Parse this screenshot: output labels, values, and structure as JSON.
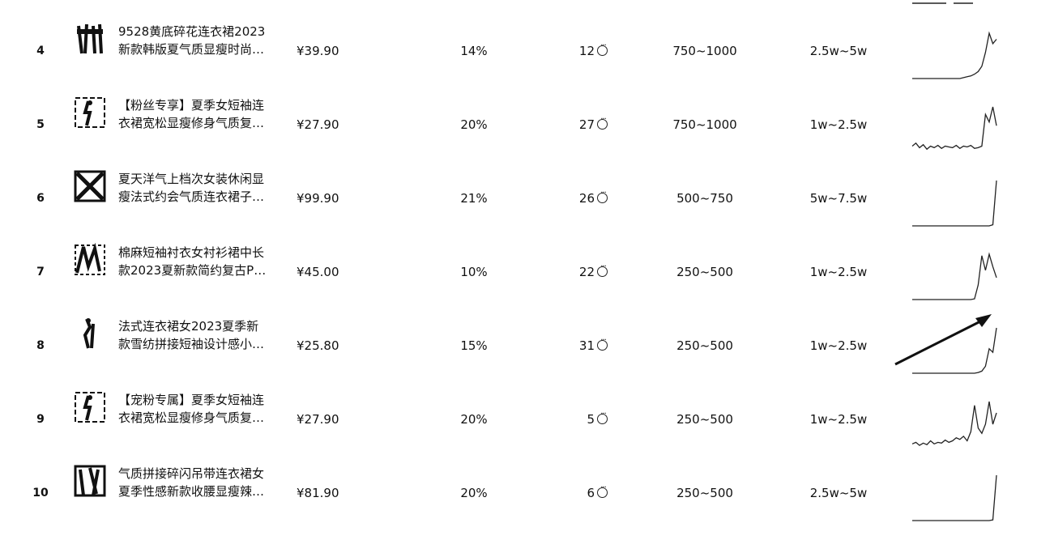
{
  "rows": [
    {
      "rank": "4",
      "title_line1": "9528黄底碎花连衣裙2023",
      "title_line2": "新款韩版夏气质显瘦时尚…",
      "price": "¥39.90",
      "rate": "14%",
      "people": "12",
      "level": "750~1000",
      "gmv": "2.5w~5w",
      "trend": [
        0,
        0,
        0,
        0,
        0,
        0,
        0,
        0,
        0,
        0,
        0,
        0,
        0,
        0,
        1,
        2,
        3,
        5,
        8,
        14,
        30,
        52,
        40,
        45
      ]
    },
    {
      "rank": "5",
      "title_line1": "【粉丝专享】夏季女短袖连",
      "title_line2": "衣裙宽松显瘦修身气质复…",
      "price": "¥27.90",
      "rate": "20%",
      "people": "27",
      "level": "750~1000",
      "gmv": "1w~2.5w",
      "trend": [
        8,
        12,
        6,
        10,
        4,
        8,
        6,
        9,
        5,
        8,
        7,
        6,
        9,
        5,
        8,
        7,
        9,
        5,
        6,
        8,
        50,
        40,
        60,
        35
      ]
    },
    {
      "rank": "6",
      "title_line1": "夏天洋气上档次女装休闲显",
      "title_line2": "瘦法式约会气质连衣裙子…",
      "price": "¥99.90",
      "rate": "21%",
      "people": "26",
      "level": "500~750",
      "gmv": "5w~7.5w",
      "trend": [
        0,
        0,
        0,
        0,
        0,
        0,
        0,
        0,
        0,
        0,
        0,
        0,
        0,
        0,
        0,
        0,
        0,
        0,
        0,
        0,
        0,
        0,
        2,
        80
      ]
    },
    {
      "rank": "7",
      "title_line1": "棉麻短袖衬衣女衬衫裙中长",
      "title_line2": "款2023夏新款简约复古P…",
      "price": "¥45.00",
      "rate": "10%",
      "people": "22",
      "level": "250~500",
      "gmv": "1w~2.5w",
      "trend": [
        0,
        0,
        0,
        0,
        0,
        0,
        0,
        0,
        0,
        0,
        0,
        0,
        0,
        0,
        0,
        0,
        0,
        1,
        20,
        60,
        40,
        62,
        45,
        30
      ]
    },
    {
      "rank": "8",
      "title_line1": "法式连衣裙女2023夏季新",
      "title_line2": "款雪纺拼接短袖设计感小…",
      "price": "¥25.80",
      "rate": "15%",
      "people": "31",
      "level": "250~500",
      "gmv": "1w~2.5w",
      "trend": [
        0,
        0,
        0,
        0,
        0,
        0,
        0,
        0,
        0,
        0,
        0,
        0,
        0,
        0,
        0,
        0,
        0,
        0,
        1,
        3,
        10,
        35,
        30,
        65
      ]
    },
    {
      "rank": "9",
      "title_line1": "【宠粉专属】夏季女短袖连",
      "title_line2": "衣裙宽松显瘦修身气质复…",
      "price": "¥27.90",
      "rate": "20%",
      "people": "5",
      "level": "250~500",
      "gmv": "1w~2.5w",
      "trend": [
        4,
        6,
        2,
        5,
        3,
        8,
        4,
        6,
        5,
        9,
        6,
        8,
        12,
        10,
        14,
        8,
        20,
        55,
        25,
        18,
        30,
        60,
        30,
        45
      ]
    },
    {
      "rank": "10",
      "title_line1": "气质拼接碎闪吊带连衣裙女",
      "title_line2": "夏季性感新款收腰显瘦辣…",
      "price": "¥81.90",
      "rate": "20%",
      "people": "6",
      "level": "250~500",
      "gmv": "2.5w~5w",
      "trend": [
        0,
        0,
        0,
        0,
        0,
        0,
        0,
        0,
        0,
        0,
        0,
        0,
        0,
        0,
        0,
        0,
        0,
        0,
        0,
        0,
        0,
        0,
        1,
        70
      ]
    }
  ],
  "icons": {
    "people": "chat-bubble-icon",
    "trend": "sparkline",
    "thumbnail": "product-image"
  },
  "colors": {
    "text": "#111111",
    "line": "#222222",
    "background": "#ffffff"
  }
}
